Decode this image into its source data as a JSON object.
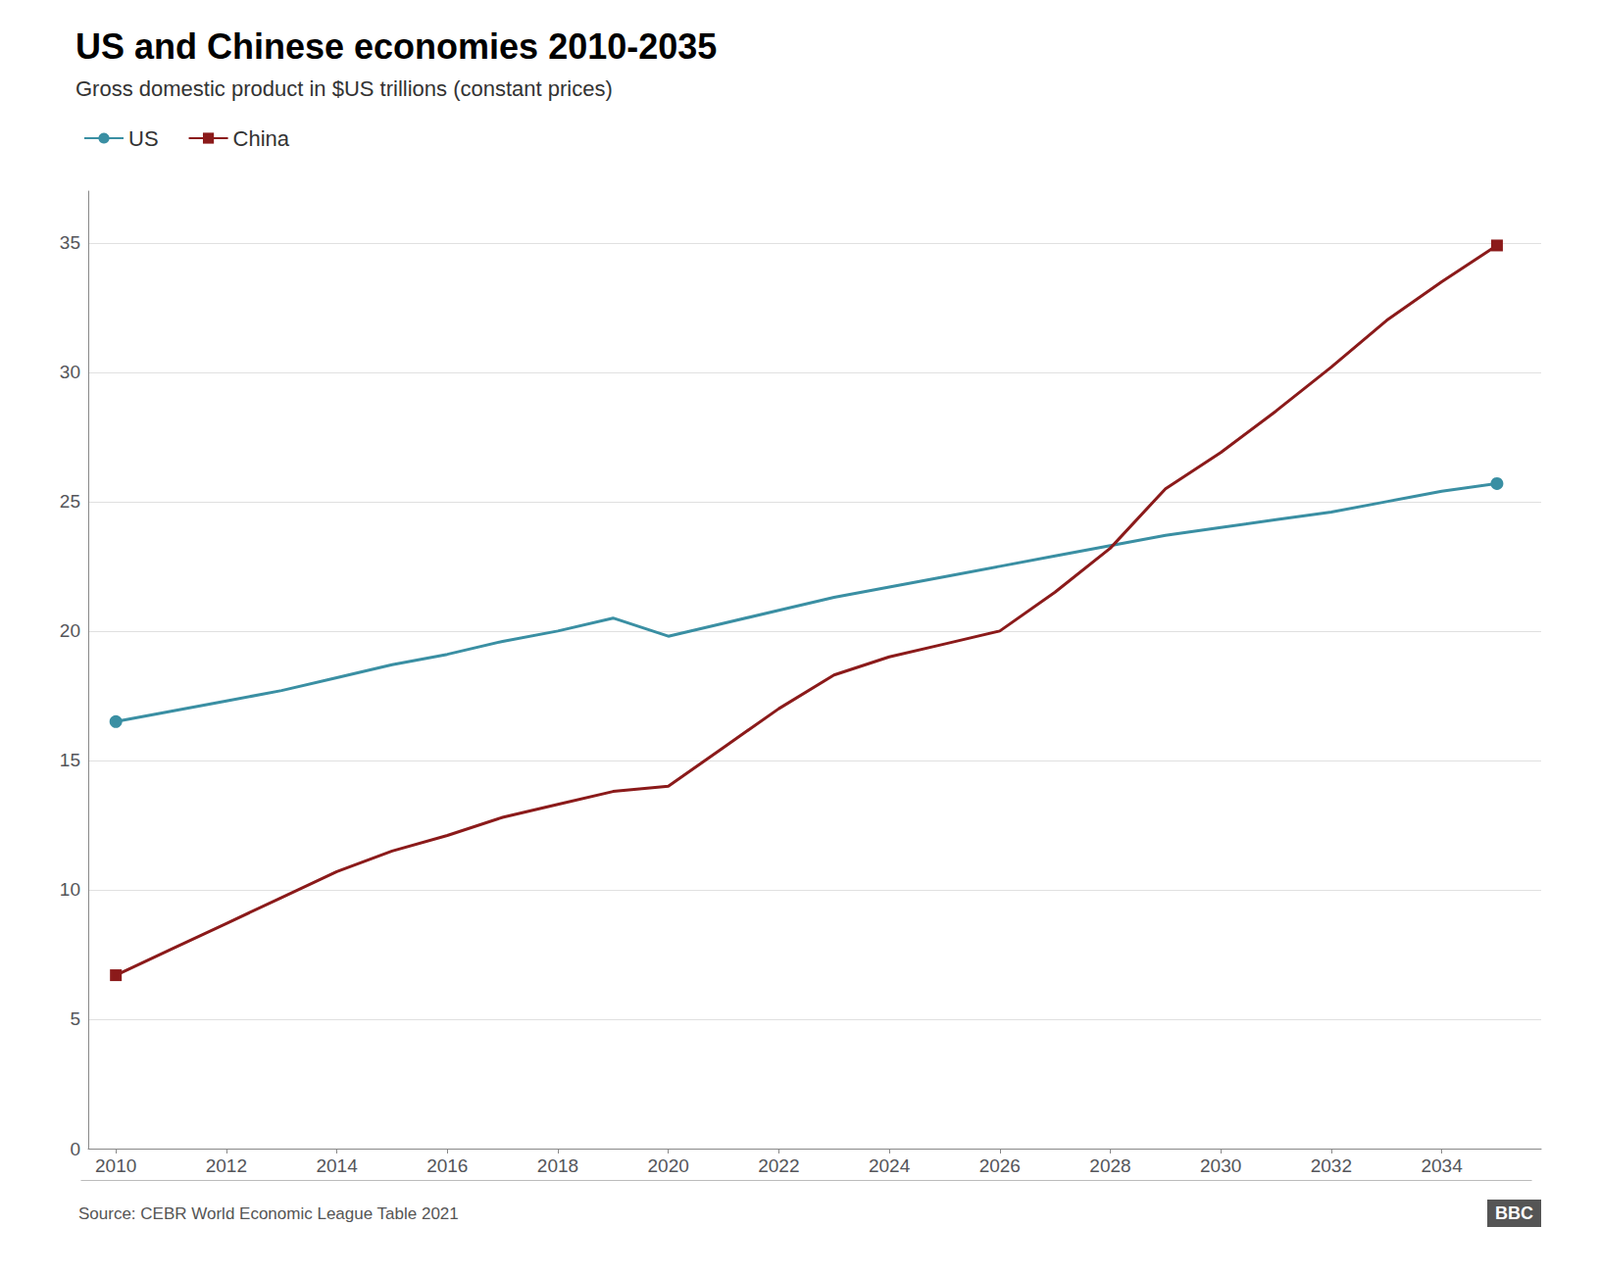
{
  "chart_data": {
    "type": "line",
    "title": "US and Chinese economies 2010-2035",
    "subtitle": "Gross domestic product in $US trillions (constant prices)",
    "source": "Source: CEBR World Economic League Table 2021",
    "annotations": [
      "BBC"
    ],
    "x": [
      2010,
      2011,
      2012,
      2013,
      2014,
      2015,
      2016,
      2017,
      2018,
      2019,
      2020,
      2021,
      2022,
      2023,
      2024,
      2025,
      2026,
      2027,
      2028,
      2029,
      2030,
      2031,
      2032,
      2033,
      2034,
      2035
    ],
    "series": [
      {
        "name": "US",
        "color": "#3a8fa3",
        "marker": "circle",
        "values": [
          16.5,
          16.9,
          17.3,
          17.7,
          18.2,
          18.7,
          19.1,
          19.6,
          20.0,
          20.5,
          19.8,
          20.3,
          20.8,
          21.3,
          21.7,
          22.1,
          22.5,
          22.9,
          23.3,
          23.7,
          24.0,
          24.3,
          24.6,
          25.0,
          25.4,
          25.7
        ]
      },
      {
        "name": "China",
        "color": "#8b1a1a",
        "marker": "square",
        "values": [
          6.7,
          7.7,
          8.7,
          9.7,
          10.7,
          11.5,
          12.1,
          12.8,
          13.3,
          13.8,
          14.0,
          15.5,
          17.0,
          18.3,
          19.0,
          19.5,
          20.0,
          21.5,
          23.2,
          25.5,
          26.9,
          28.5,
          30.2,
          32.0,
          33.5,
          34.9
        ]
      }
    ],
    "xlim": [
      2009.5,
      2035.8
    ],
    "xticks": [
      2010,
      2012,
      2014,
      2016,
      2018,
      2020,
      2022,
      2024,
      2026,
      2028,
      2030,
      2032,
      2034
    ],
    "ylim": [
      0,
      37
    ],
    "yticks": [
      0,
      5,
      10,
      15,
      20,
      25,
      30,
      35
    ],
    "grid": true,
    "legend": "upper left"
  }
}
